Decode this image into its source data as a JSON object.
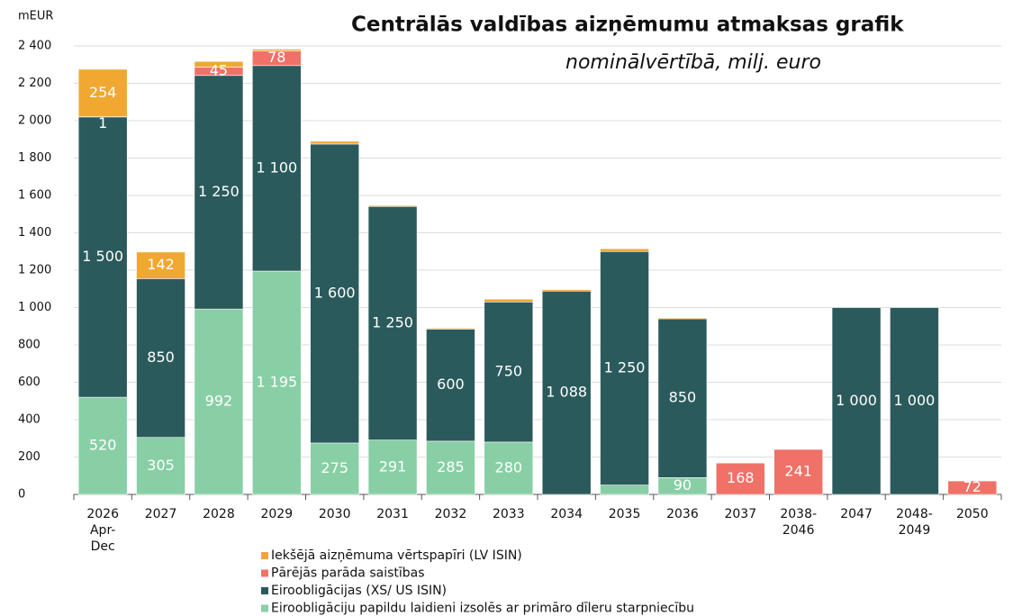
{
  "chart_data": {
    "type": "stacked_bar",
    "title": "Centrālās valdības aizņēmumu atmaksas grafik",
    "subtitle": "nominālvērtībā, milj. euro",
    "y_label": "mEUR",
    "categories": [
      [
        "2026",
        "Apr-",
        "Dec"
      ],
      [
        "2027"
      ],
      [
        "2028"
      ],
      [
        "2029"
      ],
      [
        "2030"
      ],
      [
        "2031"
      ],
      [
        "2032"
      ],
      [
        "2033"
      ],
      [
        "2034"
      ],
      [
        "2035"
      ],
      [
        "2036"
      ],
      [
        "2037"
      ],
      [
        "2038-",
        "2046"
      ],
      [
        "2047"
      ],
      [
        "2048-",
        "2049"
      ],
      [
        "2050"
      ]
    ],
    "series": [
      {
        "name": "Eiroobligāciju papildu laidieni izsolēs ar primāro dīleru starpniecību",
        "color": "#88cfa6",
        "values": [
          520,
          305,
          992,
          1195,
          275,
          291,
          285,
          280,
          0,
          50,
          90,
          0,
          0,
          0,
          0,
          0
        ],
        "value_labels": [
          "520",
          "305",
          "992",
          "1 195",
          "275",
          "291",
          "285",
          "280",
          null,
          null,
          "90",
          null,
          null,
          null,
          null,
          null
        ]
      },
      {
        "name": "Eiroobligācijas (XS/ US ISIN)",
        "color": "#2b5a5c",
        "values": [
          1500,
          850,
          1250,
          1100,
          1600,
          1250,
          600,
          750,
          1088,
          1250,
          850,
          0,
          0,
          1000,
          1000,
          0
        ],
        "value_labels": [
          "1 500",
          "850",
          "1 250",
          "1 100",
          "1 600",
          "1 250",
          "600",
          "750",
          "1 088",
          "1 250",
          "850",
          null,
          null,
          "1 000",
          "1 000",
          null
        ]
      },
      {
        "name": "Pārējās parāda saistības",
        "color": "#f07167",
        "values": [
          1,
          0,
          45,
          78,
          0,
          0,
          0,
          0,
          0,
          0,
          0,
          168,
          241,
          0,
          0,
          72
        ],
        "value_labels": [
          "1",
          null,
          "45",
          "78",
          null,
          null,
          null,
          null,
          null,
          null,
          null,
          "168",
          "241",
          null,
          null,
          "72"
        ]
      },
      {
        "name": "Iekšējā aizņēmuma vērtspapīri (LV ISIN)",
        "color": "#f0a830",
        "values": [
          254,
          142,
          30,
          10,
          15,
          5,
          5,
          15,
          8,
          15,
          5,
          0,
          0,
          0,
          0,
          0
        ],
        "value_labels": [
          "254",
          "142",
          null,
          null,
          null,
          null,
          null,
          null,
          null,
          null,
          null,
          null,
          null,
          null,
          null,
          null
        ]
      }
    ],
    "ylim": [
      0,
      2400
    ],
    "yticks": [
      0,
      200,
      400,
      600,
      800,
      {
        "value": 1000,
        "label": "1 000"
      },
      {
        "value": 1200,
        "label": "1 200"
      },
      {
        "value": 1400,
        "label": "1 400"
      },
      {
        "value": 1600,
        "label": "1 600"
      },
      {
        "value": 1800,
        "label": "1 800"
      },
      {
        "value": 2000,
        "label": "2 000"
      },
      {
        "value": 2200,
        "label": "2 200"
      },
      {
        "value": 2400,
        "label": "2 400"
      }
    ],
    "grid": true
  }
}
